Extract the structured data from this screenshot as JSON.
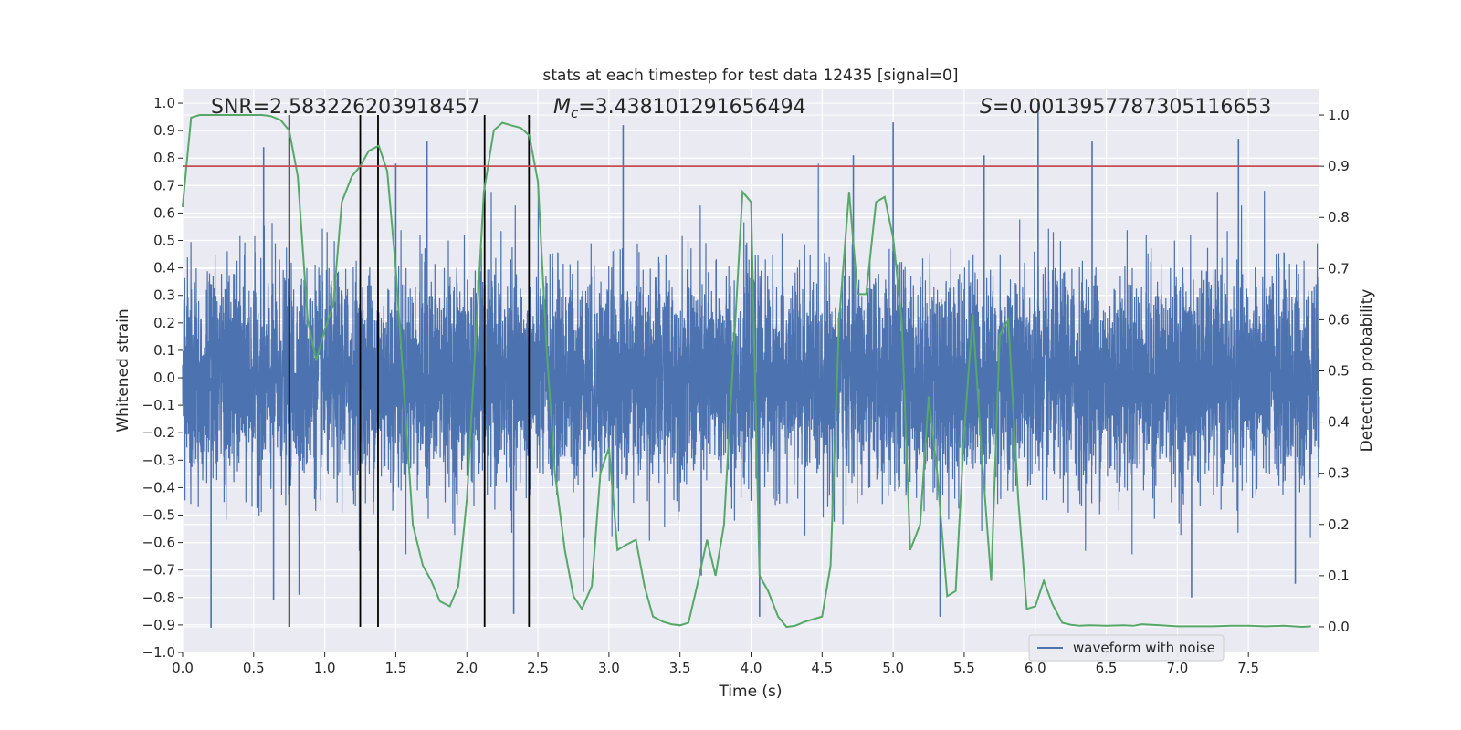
{
  "chart_data": {
    "type": "line",
    "title": "stats at each timestep for test data 12435 [signal=0]",
    "xlabel": "Time (s)",
    "ylabel": "Whitened strain",
    "y2label": "Detection probability",
    "xlim": [
      0.0,
      8.0
    ],
    "ylim": [
      -1.0,
      1.05
    ],
    "y2lim": [
      -0.05,
      1.05
    ],
    "xticks": [
      "0.0",
      "0.5",
      "1.0",
      "1.5",
      "2.0",
      "2.5",
      "3.0",
      "3.5",
      "4.0",
      "4.5",
      "5.0",
      "5.5",
      "6.0",
      "6.5",
      "7.0",
      "7.5"
    ],
    "yticks": [
      "−1.0",
      "−0.9",
      "−0.8",
      "−0.7",
      "−0.6",
      "−0.5",
      "−0.4",
      "−0.3",
      "−0.2",
      "−0.1",
      "0.0",
      "0.1",
      "0.2",
      "0.3",
      "0.4",
      "0.5",
      "0.6",
      "0.7",
      "0.8",
      "0.9",
      "1.0"
    ],
    "y2ticks": [
      "0.0",
      "0.1",
      "0.2",
      "0.3",
      "0.4",
      "0.5",
      "0.6",
      "0.7",
      "0.8",
      "0.9",
      "1.0"
    ],
    "grid": true,
    "legend": {
      "placement": "lower-right",
      "entries": [
        "waveform with noise"
      ]
    },
    "annotations": {
      "snr": "SNR=2.583226203918457",
      "mc_symbol": "M",
      "mc_sub": "c",
      "mc_value": "=3.438101291656494",
      "s_symbol": "S",
      "s_value": "=0.0013957787305116653"
    },
    "threshold": {
      "axis": "y2",
      "value": 0.9,
      "color": "#c44e52"
    },
    "vlines_x": [
      0.75,
      1.25,
      1.375,
      2.125,
      2.4375
    ],
    "waveform": {
      "name": "waveform with noise",
      "axis": "y",
      "color": "#4c72b0",
      "sample_rate_hz": 2048,
      "rms": 0.19,
      "peaks": [
        {
          "x": 0.2,
          "y": -0.91
        },
        {
          "x": 0.57,
          "y": 0.84
        },
        {
          "x": 0.64,
          "y": -0.81
        },
        {
          "x": 0.82,
          "y": -0.79
        },
        {
          "x": 1.72,
          "y": 0.86
        },
        {
          "x": 2.33,
          "y": -0.86
        },
        {
          "x": 3.1,
          "y": 0.92
        },
        {
          "x": 2.82,
          "y": -0.78
        },
        {
          "x": 4.06,
          "y": -0.87
        },
        {
          "x": 4.72,
          "y": 0.81
        },
        {
          "x": 5.0,
          "y": 0.93
        },
        {
          "x": 5.33,
          "y": -0.87
        },
        {
          "x": 5.64,
          "y": 0.81
        },
        {
          "x": 6.02,
          "y": 1.0
        },
        {
          "x": 6.4,
          "y": 0.86
        },
        {
          "x": 7.1,
          "y": -0.8
        },
        {
          "x": 7.43,
          "y": 0.87
        },
        {
          "x": 7.83,
          "y": -0.75
        },
        {
          "x": 1.5,
          "y": 0.78
        },
        {
          "x": 3.65,
          "y": -0.72
        }
      ]
    },
    "series": [
      {
        "name": "",
        "axis": "y2",
        "color": "#55a868",
        "x": [
          0.0,
          0.03,
          0.06,
          0.12,
          0.19,
          0.25,
          0.31,
          0.38,
          0.44,
          0.5,
          0.56,
          0.62,
          0.69,
          0.75,
          0.81,
          0.88,
          0.94,
          1.0,
          1.06,
          1.12,
          1.19,
          1.25,
          1.31,
          1.38,
          1.44,
          1.5,
          1.56,
          1.62,
          1.69,
          1.75,
          1.81,
          1.88,
          1.94,
          2.0,
          2.06,
          2.12,
          2.19,
          2.25,
          2.31,
          2.38,
          2.44,
          2.5,
          2.56,
          2.62,
          2.69,
          2.75,
          2.81,
          2.88,
          2.94,
          3.0,
          3.06,
          3.12,
          3.19,
          3.25,
          3.31,
          3.38,
          3.44,
          3.5,
          3.56,
          3.62,
          3.69,
          3.75,
          3.81,
          3.88,
          3.94,
          4.0,
          4.06,
          4.12,
          4.19,
          4.25,
          4.31,
          4.38,
          4.44,
          4.5,
          4.56,
          4.62,
          4.69,
          4.75,
          4.81,
          4.88,
          4.94,
          5.0,
          5.06,
          5.12,
          5.19,
          5.25,
          5.31,
          5.38,
          5.44,
          5.5,
          5.56,
          5.62,
          5.69,
          5.75,
          5.81,
          5.88,
          5.94,
          6.0,
          6.06,
          6.12,
          6.19,
          6.25,
          6.31,
          6.38,
          6.5,
          6.62,
          6.69,
          6.75,
          6.88,
          7.0,
          7.12,
          7.25,
          7.38,
          7.5,
          7.62,
          7.75,
          7.88,
          7.94
        ],
        "y": [
          0.82,
          0.91,
          0.995,
          1.0,
          1.0,
          1.0,
          1.0,
          1.0,
          1.0,
          1.0,
          1.0,
          0.998,
          0.99,
          0.97,
          0.88,
          0.6,
          0.52,
          0.58,
          0.63,
          0.83,
          0.88,
          0.9,
          0.93,
          0.94,
          0.89,
          0.7,
          0.45,
          0.2,
          0.12,
          0.09,
          0.05,
          0.04,
          0.08,
          0.25,
          0.55,
          0.85,
          0.97,
          0.985,
          0.98,
          0.975,
          0.96,
          0.87,
          0.55,
          0.3,
          0.15,
          0.06,
          0.035,
          0.08,
          0.3,
          0.35,
          0.15,
          0.16,
          0.17,
          0.08,
          0.02,
          0.01,
          0.005,
          0.003,
          0.008,
          0.08,
          0.17,
          0.1,
          0.2,
          0.55,
          0.85,
          0.83,
          0.1,
          0.07,
          0.02,
          0.0,
          0.002,
          0.01,
          0.015,
          0.02,
          0.12,
          0.6,
          0.85,
          0.65,
          0.65,
          0.83,
          0.84,
          0.76,
          0.6,
          0.15,
          0.2,
          0.45,
          0.3,
          0.06,
          0.07,
          0.38,
          0.61,
          0.35,
          0.09,
          0.57,
          0.6,
          0.25,
          0.035,
          0.04,
          0.09,
          0.045,
          0.008,
          0.004,
          0.002,
          0.003,
          0.002,
          0.003,
          0.002,
          0.005,
          0.003,
          0.001,
          0.001,
          0.001,
          0.002,
          0.002,
          0.001,
          0.002,
          0.0,
          0.001
        ]
      }
    ]
  }
}
